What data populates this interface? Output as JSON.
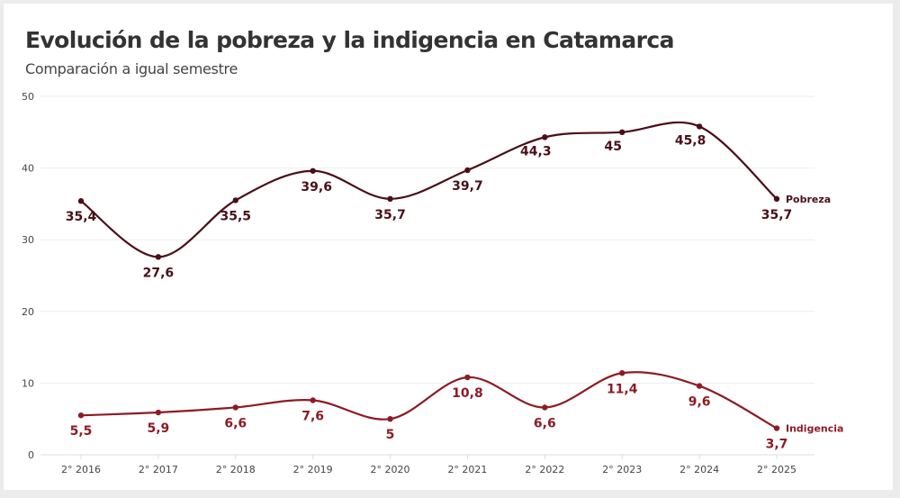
{
  "title": "Evolución de la pobreza y la indigencia en Catamarca",
  "subtitle": "Comparación a igual semestre",
  "chart_data": {
    "type": "line",
    "title": "Evolución de la pobreza y la indigencia en Catamarca",
    "subtitle": "Comparación a igual semestre",
    "categories": [
      "2° 2016",
      "2° 2017",
      "2° 2018",
      "2° 2019",
      "2° 2020",
      "2° 2021",
      "2° 2022",
      "2° 2023",
      "2° 2024",
      "2° 2025"
    ],
    "y_ticks": [
      0,
      10,
      20,
      30,
      40,
      50
    ],
    "ylim": [
      0,
      50
    ],
    "grid": true,
    "legend": "inline labels at line ends",
    "series": [
      {
        "name": "Pobreza",
        "color": "#4a0f18",
        "values": [
          35.4,
          27.6,
          35.5,
          39.6,
          35.7,
          39.7,
          44.3,
          45,
          45.8,
          35.7
        ],
        "labels": [
          "35,4",
          "27,6",
          "35,5",
          "39,6",
          "35,7",
          "39,7",
          "44,3",
          "45",
          "45,8",
          "35,7"
        ]
      },
      {
        "name": "Indigencia",
        "color": "#8e1b24",
        "values": [
          5.5,
          5.9,
          6.6,
          7.6,
          5,
          10.8,
          6.6,
          11.4,
          9.6,
          3.7
        ],
        "labels": [
          "5,5",
          "5,9",
          "6,6",
          "7,6",
          "5",
          "10,8",
          "6,6",
          "11,4",
          "9,6",
          "3,7"
        ]
      }
    ]
  }
}
